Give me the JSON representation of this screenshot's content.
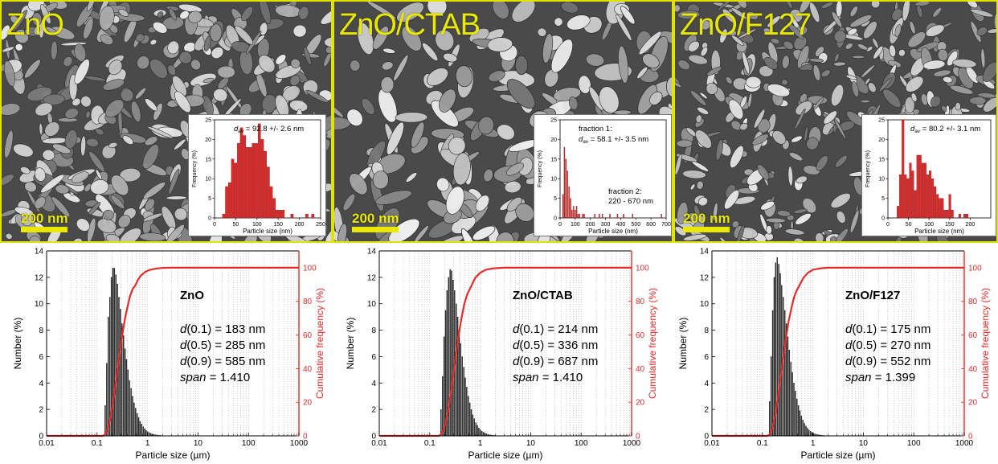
{
  "sem_panels": [
    {
      "label": "ZnO",
      "scale_bar": "200 nm",
      "inset": {
        "annotations": [
          {
            "d_symbol": "d",
            "sub": "av",
            "text": " = 92.8 +/- 2.6 nm"
          }
        ],
        "xlabel": "Particle size (nm)",
        "ylabel": "Frequency (%)",
        "xlim": [
          0,
          250
        ],
        "ylim": [
          0,
          25
        ],
        "xticks": [
          0,
          50,
          100,
          150,
          200,
          250
        ],
        "yticks": [
          0,
          5,
          10,
          15,
          20,
          25
        ],
        "bar_width": 7,
        "bars": [
          [
            22,
            1
          ],
          [
            29,
            8
          ],
          [
            36,
            9
          ],
          [
            43,
            15
          ],
          [
            50,
            14
          ],
          [
            57,
            19
          ],
          [
            64,
            23
          ],
          [
            71,
            21
          ],
          [
            78,
            18
          ],
          [
            85,
            18
          ],
          [
            92,
            19
          ],
          [
            99,
            19
          ],
          [
            106,
            24
          ],
          [
            113,
            20
          ],
          [
            120,
            17
          ],
          [
            127,
            13
          ],
          [
            134,
            8
          ],
          [
            141,
            5
          ],
          [
            148,
            2
          ],
          [
            155,
            2
          ],
          [
            162,
            2
          ],
          [
            183,
            1
          ],
          [
            218,
            1
          ],
          [
            232,
            1
          ]
        ]
      }
    },
    {
      "label": "ZnO/CTAB",
      "scale_bar": "200 nm",
      "inset": {
        "annotations": [
          {
            "line1": "fraction 1:",
            "d_symbol": "d",
            "sub": "av",
            "text": " = 58.1 +/- 3.5 nm"
          },
          {
            "line1": "fraction 2:",
            "line2": "220 - 670 nm"
          }
        ],
        "xlabel": "Particle size (nm)",
        "ylabel": "Frequency (%)",
        "xlim": [
          0,
          700
        ],
        "ylim": [
          0,
          25
        ],
        "xticks": [
          0,
          100,
          200,
          300,
          400,
          500,
          600,
          700
        ],
        "yticks": [
          0,
          5,
          10,
          15,
          20,
          25
        ],
        "bar_width": 8,
        "bars": [
          [
            20,
            6
          ],
          [
            30,
            18
          ],
          [
            40,
            15
          ],
          [
            50,
            12
          ],
          [
            60,
            8
          ],
          [
            70,
            5
          ],
          [
            80,
            2
          ],
          [
            90,
            3
          ],
          [
            100,
            2
          ],
          [
            110,
            3
          ],
          [
            120,
            1
          ],
          [
            130,
            1
          ],
          [
            150,
            1
          ],
          [
            160,
            1
          ],
          [
            230,
            1
          ],
          [
            260,
            1
          ],
          [
            280,
            1
          ],
          [
            330,
            1
          ],
          [
            380,
            1
          ],
          [
            420,
            1
          ],
          [
            480,
            1
          ],
          [
            670,
            1
          ]
        ]
      }
    },
    {
      "label": "ZnO/F127",
      "scale_bar": "200 nm",
      "inset": {
        "annotations": [
          {
            "d_symbol": "d",
            "sub": "av",
            "text": " = 80.2 +/- 3.1 nm"
          }
        ],
        "xlabel": "Particle size (nm)",
        "ylabel": "Frequency (%)",
        "xlim": [
          0,
          250
        ],
        "ylim": [
          0,
          25
        ],
        "xticks": [
          0,
          50,
          100,
          150,
          200
        ],
        "yticks": [
          0,
          5,
          10,
          15,
          20,
          25
        ],
        "bar_width": 6,
        "bars": [
          [
            25,
            3
          ],
          [
            31,
            11
          ],
          [
            37,
            25
          ],
          [
            43,
            11
          ],
          [
            49,
            10
          ],
          [
            55,
            14
          ],
          [
            61,
            12
          ],
          [
            67,
            7
          ],
          [
            73,
            16
          ],
          [
            79,
            16
          ],
          [
            85,
            14
          ],
          [
            91,
            14
          ],
          [
            97,
            11
          ],
          [
            103,
            12
          ],
          [
            109,
            10
          ],
          [
            115,
            8
          ],
          [
            121,
            6
          ],
          [
            127,
            5
          ],
          [
            133,
            5
          ],
          [
            139,
            2
          ],
          [
            145,
            2
          ],
          [
            151,
            6
          ],
          [
            157,
            2
          ],
          [
            175,
            1
          ],
          [
            187,
            1
          ],
          [
            193,
            1
          ]
        ]
      }
    }
  ],
  "chart_data": [
    {
      "type": "bar",
      "title": "ZnO",
      "xlabel": "Particle size (µm)",
      "ylabel": "Number (%)",
      "y2label": "Cumulative frequency (%)",
      "xscale": "log",
      "xlim": [
        0.01,
        1000
      ],
      "ylim": [
        0,
        14
      ],
      "y2lim": [
        0,
        110
      ],
      "xticks": [
        "0.01",
        "0.1",
        "1",
        "10",
        "100",
        "1000"
      ],
      "yticks": [
        0,
        2,
        4,
        6,
        8,
        10,
        12,
        14
      ],
      "y2ticks": [
        0,
        20,
        40,
        60,
        80,
        100
      ],
      "grid": "x-minor-dotted",
      "stats": {
        "d10": "183 nm",
        "d50": "285 nm",
        "d90": "585 nm",
        "span": "1.410"
      },
      "bars": [
        [
          0.147,
          2.3
        ],
        [
          0.158,
          5.5
        ],
        [
          0.17,
          9.0
        ],
        [
          0.182,
          10.5
        ],
        [
          0.195,
          12.0
        ],
        [
          0.209,
          12.7
        ],
        [
          0.224,
          12.7
        ],
        [
          0.24,
          12.2
        ],
        [
          0.257,
          11.5
        ],
        [
          0.275,
          10.5
        ],
        [
          0.295,
          9.6
        ],
        [
          0.316,
          8.5
        ],
        [
          0.339,
          7.6
        ],
        [
          0.363,
          6.6
        ],
        [
          0.389,
          5.8
        ],
        [
          0.417,
          5.0
        ],
        [
          0.447,
          4.2
        ],
        [
          0.479,
          3.6
        ],
        [
          0.513,
          3.0
        ],
        [
          0.55,
          2.5
        ],
        [
          0.589,
          2.1
        ],
        [
          0.631,
          1.7
        ],
        [
          0.676,
          1.4
        ],
        [
          0.724,
          1.1
        ],
        [
          0.776,
          0.9
        ],
        [
          0.832,
          0.7
        ],
        [
          0.891,
          0.55
        ],
        [
          0.955,
          0.42
        ],
        [
          1.023,
          0.32
        ],
        [
          1.096,
          0.25
        ],
        [
          1.175,
          0.19
        ],
        [
          1.259,
          0.15
        ],
        [
          1.349,
          0.11
        ],
        [
          1.445,
          0.09
        ],
        [
          1.549,
          0.07
        ],
        [
          1.66,
          0.05
        ],
        [
          1.778,
          0.04
        ],
        [
          1.905,
          0.03
        ],
        [
          2.042,
          0.02
        ],
        [
          2.188,
          0.02
        ],
        [
          2.344,
          0.01
        ]
      ],
      "cumulative": [
        [
          0.01,
          0
        ],
        [
          0.13,
          0
        ],
        [
          0.147,
          1
        ],
        [
          0.158,
          3
        ],
        [
          0.17,
          6
        ],
        [
          0.183,
          10
        ],
        [
          0.2,
          17
        ],
        [
          0.22,
          25
        ],
        [
          0.24,
          34
        ],
        [
          0.26,
          42
        ],
        [
          0.285,
          50
        ],
        [
          0.31,
          58
        ],
        [
          0.34,
          66
        ],
        [
          0.37,
          72
        ],
        [
          0.41,
          78
        ],
        [
          0.45,
          83
        ],
        [
          0.5,
          87
        ],
        [
          0.585,
          90
        ],
        [
          0.65,
          93
        ],
        [
          0.75,
          95.5
        ],
        [
          0.9,
          97.5
        ],
        [
          1.1,
          98.7
        ],
        [
          1.5,
          99.5
        ],
        [
          2,
          99.9
        ],
        [
          3,
          100
        ],
        [
          1000,
          100
        ]
      ]
    },
    {
      "type": "bar",
      "title": "ZnO/CTAB",
      "xlabel": "Particle size (µm)",
      "ylabel": "Number (%)",
      "y2label": "Cumulative frequency (%)",
      "xscale": "log",
      "xlim": [
        0.01,
        1000
      ],
      "ylim": [
        0,
        14
      ],
      "y2lim": [
        0,
        110
      ],
      "xticks": [
        "0.01",
        "0.1",
        "1",
        "10",
        "100",
        "1000"
      ],
      "yticks": [
        0,
        2,
        4,
        6,
        8,
        10,
        12,
        14
      ],
      "y2ticks": [
        0,
        20,
        40,
        60,
        80,
        100
      ],
      "grid": "x-minor-dotted",
      "stats": {
        "d10": "214 nm",
        "d50": "336 nm",
        "d90": "687 nm",
        "span": "1.410"
      },
      "bars": [
        [
          0.17,
          2.0
        ],
        [
          0.182,
          4.5
        ],
        [
          0.195,
          7.5
        ],
        [
          0.209,
          9.5
        ],
        [
          0.224,
          11.0
        ],
        [
          0.24,
          12.0
        ],
        [
          0.257,
          12.6
        ],
        [
          0.275,
          12.5
        ],
        [
          0.295,
          11.8
        ],
        [
          0.316,
          11.0
        ],
        [
          0.339,
          10.0
        ],
        [
          0.363,
          9.0
        ],
        [
          0.389,
          8.0
        ],
        [
          0.417,
          7.0
        ],
        [
          0.447,
          6.0
        ],
        [
          0.479,
          5.2
        ],
        [
          0.513,
          4.4
        ],
        [
          0.55,
          3.7
        ],
        [
          0.589,
          3.0
        ],
        [
          0.631,
          2.5
        ],
        [
          0.676,
          2.0
        ],
        [
          0.724,
          1.6
        ],
        [
          0.776,
          1.3
        ],
        [
          0.832,
          1.0
        ],
        [
          0.891,
          0.8
        ],
        [
          0.955,
          0.6
        ],
        [
          1.023,
          0.47
        ],
        [
          1.096,
          0.36
        ],
        [
          1.175,
          0.28
        ],
        [
          1.259,
          0.21
        ],
        [
          1.349,
          0.16
        ],
        [
          1.445,
          0.12
        ],
        [
          1.549,
          0.09
        ],
        [
          1.66,
          0.07
        ],
        [
          1.778,
          0.05
        ],
        [
          1.905,
          0.04
        ],
        [
          2.042,
          0.03
        ],
        [
          2.188,
          0.02
        ],
        [
          2.344,
          0.02
        ],
        [
          2.512,
          0.01
        ]
      ],
      "cumulative": [
        [
          0.01,
          0
        ],
        [
          0.15,
          0
        ],
        [
          0.17,
          1
        ],
        [
          0.19,
          4
        ],
        [
          0.214,
          10
        ],
        [
          0.24,
          18
        ],
        [
          0.27,
          28
        ],
        [
          0.3,
          39
        ],
        [
          0.336,
          50
        ],
        [
          0.37,
          59
        ],
        [
          0.42,
          69
        ],
        [
          0.48,
          78
        ],
        [
          0.55,
          84
        ],
        [
          0.687,
          90
        ],
        [
          0.8,
          94
        ],
        [
          1,
          97
        ],
        [
          1.3,
          98.8
        ],
        [
          1.8,
          99.6
        ],
        [
          3,
          100
        ],
        [
          1000,
          100
        ]
      ]
    },
    {
      "type": "bar",
      "title": "ZnO/F127",
      "xlabel": "Particle size (µm)",
      "ylabel": "Number (%)",
      "y2label": "Cumulative frequency (%)",
      "xscale": "log",
      "xlim": [
        0.01,
        1000
      ],
      "ylim": [
        0,
        14
      ],
      "y2lim": [
        0,
        110
      ],
      "xticks": [
        "0.01",
        "0.1",
        "1",
        "10",
        "100",
        "1000"
      ],
      "yticks": [
        0,
        2,
        4,
        6,
        8,
        10,
        12,
        14
      ],
      "y2ticks": [
        0,
        20,
        40,
        60,
        80,
        100
      ],
      "grid": "x-minor-dotted",
      "stats": {
        "d10": "175 nm",
        "d50": "270 nm",
        "d90": "552 nm",
        "span": "1.399"
      },
      "bars": [
        [
          0.141,
          2.6
        ],
        [
          0.151,
          6.0
        ],
        [
          0.162,
          9.5
        ],
        [
          0.174,
          12.0
        ],
        [
          0.186,
          13.1
        ],
        [
          0.2,
          13.5
        ],
        [
          0.214,
          13.0
        ],
        [
          0.229,
          12.3
        ],
        [
          0.245,
          11.4
        ],
        [
          0.263,
          10.5
        ],
        [
          0.282,
          9.5
        ],
        [
          0.302,
          8.5
        ],
        [
          0.324,
          7.5
        ],
        [
          0.347,
          6.5
        ],
        [
          0.372,
          5.6
        ],
        [
          0.398,
          4.8
        ],
        [
          0.427,
          4.0
        ],
        [
          0.457,
          3.4
        ],
        [
          0.49,
          2.8
        ],
        [
          0.525,
          2.3
        ],
        [
          0.562,
          1.9
        ],
        [
          0.603,
          1.5
        ],
        [
          0.646,
          1.2
        ],
        [
          0.692,
          0.95
        ],
        [
          0.741,
          0.75
        ],
        [
          0.794,
          0.58
        ],
        [
          0.851,
          0.45
        ],
        [
          0.912,
          0.35
        ],
        [
          0.977,
          0.27
        ],
        [
          1.047,
          0.2
        ],
        [
          1.122,
          0.15
        ],
        [
          1.202,
          0.12
        ],
        [
          1.288,
          0.09
        ],
        [
          1.38,
          0.07
        ],
        [
          1.479,
          0.05
        ],
        [
          1.585,
          0.04
        ],
        [
          1.698,
          0.03
        ],
        [
          1.82,
          0.02
        ],
        [
          1.95,
          0.01
        ]
      ],
      "cumulative": [
        [
          0.01,
          0
        ],
        [
          0.125,
          0
        ],
        [
          0.141,
          1
        ],
        [
          0.155,
          4
        ],
        [
          0.175,
          10
        ],
        [
          0.19,
          17
        ],
        [
          0.21,
          26
        ],
        [
          0.23,
          35
        ],
        [
          0.25,
          43
        ],
        [
          0.27,
          50
        ],
        [
          0.3,
          60
        ],
        [
          0.33,
          68
        ],
        [
          0.37,
          75
        ],
        [
          0.42,
          82
        ],
        [
          0.47,
          86
        ],
        [
          0.552,
          90
        ],
        [
          0.65,
          94
        ],
        [
          0.8,
          97
        ],
        [
          1,
          98.8
        ],
        [
          1.4,
          99.6
        ],
        [
          2,
          100
        ],
        [
          1000,
          100
        ]
      ]
    }
  ]
}
